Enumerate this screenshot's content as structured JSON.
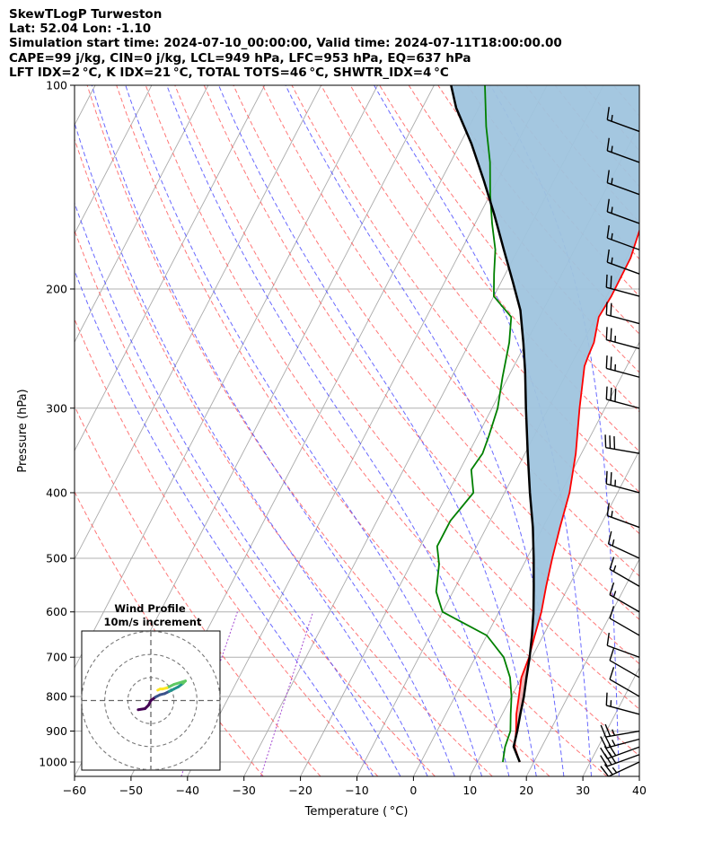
{
  "header": {
    "line1": "SkewTLogP Turweston",
    "line2": "Lat: 52.04   Lon: -1.10",
    "line3": "Simulation start time: 2024-07-10_00:00:00, Valid time: 2024-07-11T18:00:00.00",
    "line4": "CAPE=99 j/kg, CIN=0 j/kg, LCL=949 hPa, LFC=953 hPa, EQ=637 hPa",
    "line5": "LFT IDX=2 °C, K IDX=21 °C, TOTAL TOTS=46 °C, SHWTR_IDX=4 °C"
  },
  "chart_data": {
    "type": "line",
    "xlabel": "Temperature ( °C)",
    "ylabel": "Pressure (hPa)",
    "xlim": [
      -60,
      40
    ],
    "ylim": [
      1050,
      100
    ],
    "y_scale": "log",
    "x_ticks": [
      -60,
      -50,
      -40,
      -30,
      -20,
      -10,
      0,
      10,
      20,
      30,
      40
    ],
    "x_tick_labels": [
      "−60",
      "−50",
      "−40",
      "−30",
      "−20",
      "−10",
      "0",
      "10",
      "20",
      "30",
      "40"
    ],
    "y_ticks": [
      1000,
      900,
      800,
      700,
      600,
      500,
      400,
      300,
      200,
      100
    ],
    "y_tick_labels": [
      "1000",
      "900",
      "800",
      "700",
      "600",
      "500",
      "400",
      "300",
      "200",
      "100"
    ],
    "grid": true,
    "series": [
      {
        "role": "temperature",
        "color": "#ff0000",
        "points": [
          [
            17.5,
            1000
          ],
          [
            15.2,
            950
          ],
          [
            14.0,
            900
          ],
          [
            12.5,
            850
          ],
          [
            11.3,
            800
          ],
          [
            10.0,
            750
          ],
          [
            9.5,
            700
          ],
          [
            8.5,
            650
          ],
          [
            7.5,
            600
          ],
          [
            6.0,
            550
          ],
          [
            4.5,
            500
          ],
          [
            3.0,
            450
          ],
          [
            1.5,
            400
          ],
          [
            -1.0,
            350
          ],
          [
            -4.5,
            300
          ],
          [
            -7.5,
            260
          ],
          [
            -7.8,
            250
          ],
          [
            -8.0,
            240
          ],
          [
            -9.5,
            220
          ],
          [
            -9.2,
            205
          ],
          [
            -9.3,
            180
          ],
          [
            -10.5,
            160
          ],
          [
            -11.0,
            150
          ],
          [
            -13.5,
            135
          ],
          [
            -16.0,
            120
          ],
          [
            -19.5,
            108
          ],
          [
            -20.0,
            100
          ]
        ]
      },
      {
        "role": "dewpoint",
        "color": "#008000",
        "points": [
          [
            14.5,
            1000
          ],
          [
            13.5,
            950
          ],
          [
            13.0,
            900
          ],
          [
            11.5,
            850
          ],
          [
            10.0,
            800
          ],
          [
            8.0,
            750
          ],
          [
            5.0,
            700
          ],
          [
            0.0,
            650
          ],
          [
            -10.0,
            600
          ],
          [
            -13.0,
            560
          ],
          [
            -15.0,
            510
          ],
          [
            -17.0,
            480
          ],
          [
            -17.0,
            440
          ],
          [
            -15.5,
            400
          ],
          [
            -18.0,
            370
          ],
          [
            -17.5,
            350
          ],
          [
            -18.0,
            330
          ],
          [
            -19.0,
            300
          ],
          [
            -21.0,
            270
          ],
          [
            -23.0,
            240
          ],
          [
            -25.0,
            220
          ],
          [
            -30.0,
            205
          ],
          [
            -32.0,
            190
          ],
          [
            -34.0,
            175
          ],
          [
            -37.0,
            160
          ],
          [
            -40.0,
            145
          ],
          [
            -43.0,
            130
          ],
          [
            -47.0,
            115
          ],
          [
            -51.0,
            100
          ]
        ]
      },
      {
        "role": "parcel",
        "color": "#000000",
        "points": [
          [
            17.5,
            1000
          ],
          [
            15.0,
            949
          ],
          [
            14.2,
            900
          ],
          [
            13.2,
            850
          ],
          [
            12.2,
            800
          ],
          [
            10.9,
            750
          ],
          [
            9.6,
            700
          ],
          [
            8.0,
            650
          ],
          [
            6.1,
            600
          ],
          [
            3.8,
            550
          ],
          [
            1.2,
            500
          ],
          [
            -1.8,
            450
          ],
          [
            -5.5,
            400
          ],
          [
            -9.5,
            350
          ],
          [
            -14.0,
            300
          ],
          [
            -17.5,
            265
          ],
          [
            -20.5,
            240
          ],
          [
            -24.0,
            215
          ],
          [
            -28.0,
            195
          ],
          [
            -32.5,
            175
          ],
          [
            -37.5,
            155
          ],
          [
            -42.5,
            138
          ],
          [
            -48.0,
            122
          ],
          [
            -54.0,
            108
          ],
          [
            -57.0,
            100
          ]
        ]
      }
    ],
    "cape_region": {
      "color": "#9fc4de"
    },
    "cin_region": {
      "color": "#f0b4b4"
    },
    "isotherm_color": "#aaaaaa",
    "dry_adiabat_color": "#ff5555",
    "moist_adiabat_color": "#4444ff",
    "mixing_ratio_color": "#9933cc",
    "wind_barbs": [
      {
        "p": 1000,
        "dir": 245,
        "spd": 25
      },
      {
        "p": 975,
        "dir": 250,
        "spd": 30
      },
      {
        "p": 950,
        "dir": 250,
        "spd": 30
      },
      {
        "p": 925,
        "dir": 255,
        "spd": 25
      },
      {
        "p": 900,
        "dir": 260,
        "spd": 25
      },
      {
        "p": 850,
        "dir": 285,
        "spd": 15
      },
      {
        "p": 800,
        "dir": 300,
        "spd": 10
      },
      {
        "p": 750,
        "dir": 300,
        "spd": 10
      },
      {
        "p": 700,
        "dir": 290,
        "spd": 10
      },
      {
        "p": 650,
        "dir": 300,
        "spd": 10
      },
      {
        "p": 600,
        "dir": 300,
        "spd": 15
      },
      {
        "p": 550,
        "dir": 300,
        "spd": 15
      },
      {
        "p": 500,
        "dir": 295,
        "spd": 15
      },
      {
        "p": 450,
        "dir": 290,
        "spd": 15
      },
      {
        "p": 400,
        "dir": 285,
        "spd": 25
      },
      {
        "p": 350,
        "dir": 280,
        "spd": 30
      },
      {
        "p": 300,
        "dir": 285,
        "spd": 30
      },
      {
        "p": 270,
        "dir": 285,
        "spd": 25
      },
      {
        "p": 245,
        "dir": 285,
        "spd": 25
      },
      {
        "p": 225,
        "dir": 285,
        "spd": 20
      },
      {
        "p": 205,
        "dir": 285,
        "spd": 20
      },
      {
        "p": 190,
        "dir": 290,
        "spd": 15
      },
      {
        "p": 175,
        "dir": 290,
        "spd": 15
      },
      {
        "p": 160,
        "dir": 290,
        "spd": 15
      },
      {
        "p": 145,
        "dir": 290,
        "spd": 15
      },
      {
        "p": 130,
        "dir": 290,
        "spd": 15
      },
      {
        "p": 117,
        "dir": 290,
        "spd": 15
      }
    ],
    "hodograph": {
      "title_line1": "Wind Profile",
      "title_line2": "10m/s increment",
      "max_speed": 30,
      "rings": [
        10,
        20,
        30
      ],
      "colormap": [
        "#440154",
        "#3b528b",
        "#21918c",
        "#5ec962",
        "#fde725"
      ],
      "points": [
        [
          -5.5,
          -4
        ],
        [
          -2.5,
          -3.5
        ],
        [
          -1,
          -2
        ],
        [
          0,
          0
        ],
        [
          2,
          1.5
        ],
        [
          4,
          2.5
        ],
        [
          6,
          3
        ],
        [
          8,
          4
        ],
        [
          10,
          5
        ],
        [
          12,
          6
        ],
        [
          14,
          7.5
        ],
        [
          15,
          8.5
        ],
        [
          10,
          7
        ],
        [
          7,
          5.5
        ],
        [
          5,
          5
        ],
        [
          4,
          5
        ],
        [
          3,
          4.5
        ]
      ]
    }
  }
}
